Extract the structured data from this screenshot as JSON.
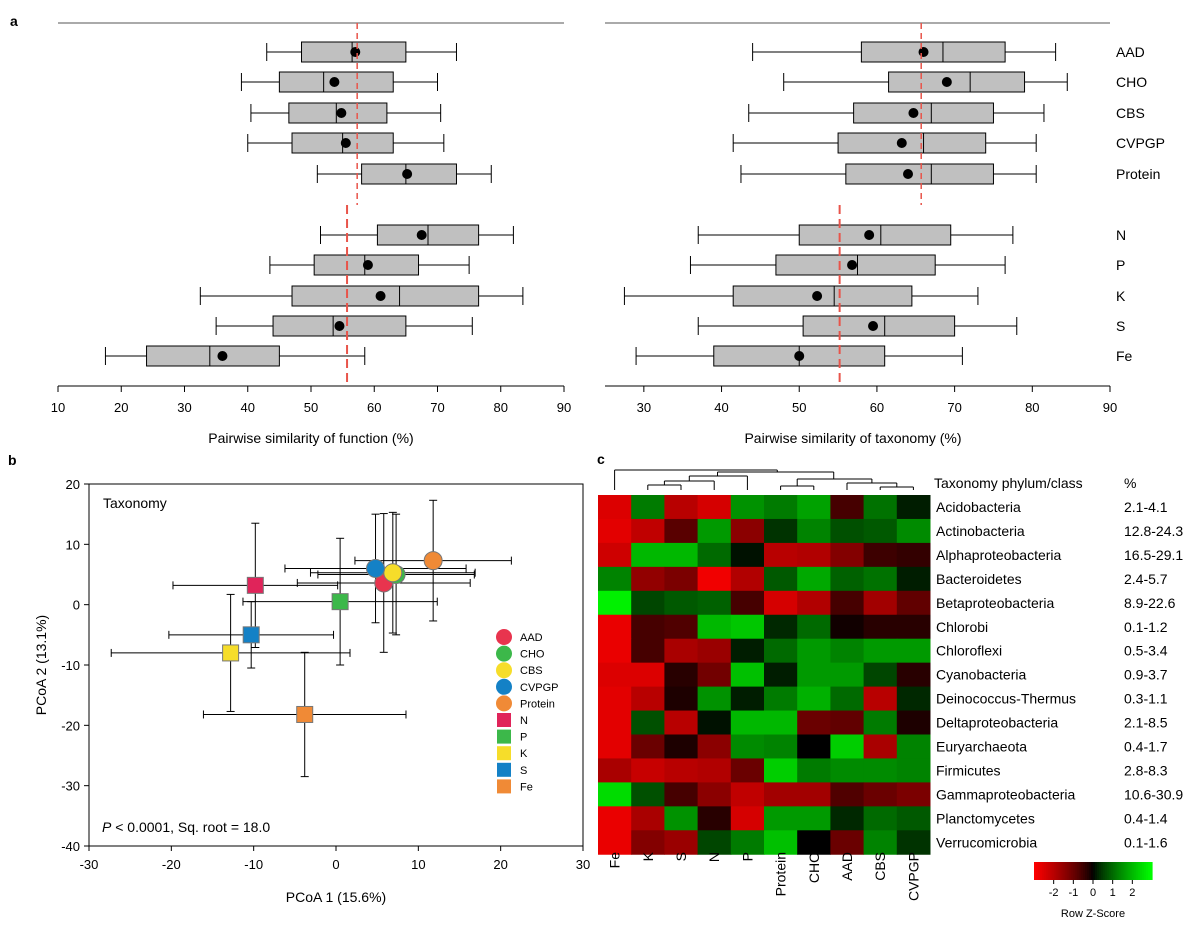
{
  "panel_labels": {
    "a": "a",
    "b": "b",
    "c": "c"
  },
  "colors": {
    "box_fill": "#c0c0c0",
    "ref_line": "#e8544a",
    "AAD": "#e8344e",
    "CHO": "#3cb84a",
    "CBS": "#f6dd2a",
    "CVPGP": "#1481c6",
    "Protein": "#f08a36",
    "N": "#e0245a",
    "P": "#3cb84a",
    "K": "#f6dd2a",
    "S": "#1481c6",
    "Fe": "#f08a36"
  },
  "chart_data": [
    {
      "id": "a-function",
      "type": "boxplot",
      "xlabel": "Pairwise similarity of function (%)",
      "xlim": [
        10,
        90
      ],
      "xticks": [
        10,
        20,
        30,
        40,
        50,
        60,
        70,
        80,
        90
      ],
      "ref_lines": [
        57.3,
        55.7
      ],
      "series": [
        {
          "name": "AAD",
          "whisker_low": 43,
          "q1": 48.5,
          "median": 56.5,
          "q3": 65,
          "whisker_high": 73,
          "mean": 57
        },
        {
          "name": "CHO",
          "whisker_low": 39,
          "q1": 45,
          "median": 52,
          "q3": 63,
          "whisker_high": 70,
          "mean": 53.7
        },
        {
          "name": "CBS",
          "whisker_low": 40.5,
          "q1": 46.5,
          "median": 54,
          "q3": 62,
          "whisker_high": 70.5,
          "mean": 54.8
        },
        {
          "name": "CVPGP",
          "whisker_low": 40,
          "q1": 47,
          "median": 55,
          "q3": 63,
          "whisker_high": 71,
          "mean": 55.5
        },
        {
          "name": "Protein",
          "whisker_low": 51,
          "q1": 58,
          "median": 65,
          "q3": 73,
          "whisker_high": 78.5,
          "mean": 65.2
        },
        {
          "name": "N",
          "whisker_low": 51.5,
          "q1": 60.5,
          "median": 68.5,
          "q3": 76.5,
          "whisker_high": 82,
          "mean": 67.5
        },
        {
          "name": "P",
          "whisker_low": 43.5,
          "q1": 50.5,
          "median": 58.5,
          "q3": 67,
          "whisker_high": 75,
          "mean": 59
        },
        {
          "name": "K",
          "whisker_low": 32.5,
          "q1": 47,
          "median": 64,
          "q3": 76.5,
          "whisker_high": 83.5,
          "mean": 61
        },
        {
          "name": "S",
          "whisker_low": 35,
          "q1": 44,
          "median": 53.5,
          "q3": 65,
          "whisker_high": 75.5,
          "mean": 54.5
        },
        {
          "name": "Fe",
          "whisker_low": 17.5,
          "q1": 24,
          "median": 34,
          "q3": 45,
          "whisker_high": 58.5,
          "mean": 36
        }
      ]
    },
    {
      "id": "a-taxonomy",
      "type": "boxplot",
      "xlabel": "Pairwise similarity of taxonomy (%)",
      "xlim": [
        25,
        90
      ],
      "xticks": [
        30,
        40,
        50,
        60,
        70,
        80,
        90
      ],
      "ref_lines": [
        65.7,
        55.2
      ],
      "series": [
        {
          "name": "AAD",
          "whisker_low": 44,
          "q1": 58,
          "median": 68.5,
          "q3": 76.5,
          "whisker_high": 83,
          "mean": 66
        },
        {
          "name": "CHO",
          "whisker_low": 48,
          "q1": 61.5,
          "median": 72,
          "q3": 79,
          "whisker_high": 84.5,
          "mean": 69
        },
        {
          "name": "CBS",
          "whisker_low": 43.5,
          "q1": 57,
          "median": 67,
          "q3": 75,
          "whisker_high": 81.5,
          "mean": 64.7
        },
        {
          "name": "CVPGP",
          "whisker_low": 41.5,
          "q1": 55,
          "median": 66,
          "q3": 74,
          "whisker_high": 80.5,
          "mean": 63.2
        },
        {
          "name": "Protein",
          "whisker_low": 42.5,
          "q1": 56,
          "median": 67,
          "q3": 75,
          "whisker_high": 80.5,
          "mean": 64
        },
        {
          "name": "N",
          "whisker_low": 37,
          "q1": 50,
          "median": 60.5,
          "q3": 69.5,
          "whisker_high": 77.5,
          "mean": 59
        },
        {
          "name": "P",
          "whisker_low": 36,
          "q1": 47,
          "median": 57.5,
          "q3": 67.5,
          "whisker_high": 76.5,
          "mean": 56.8
        },
        {
          "name": "K",
          "whisker_low": 27.5,
          "q1": 41.5,
          "median": 54.5,
          "q3": 64.5,
          "whisker_high": 73,
          "mean": 52.3
        },
        {
          "name": "S",
          "whisker_low": 37,
          "q1": 50.5,
          "median": 61,
          "q3": 70,
          "whisker_high": 78,
          "mean": 59.5
        },
        {
          "name": "Fe",
          "whisker_low": 29,
          "q1": 39,
          "median": 50,
          "q3": 61,
          "whisker_high": 71,
          "mean": 50
        }
      ]
    },
    {
      "id": "b-pcoa",
      "type": "scatter",
      "title": "Taxonomy",
      "xlabel": "PCoA 1 (15.6%)",
      "ylabel": "PCoA 2 (13.1%)",
      "xlim": [
        -30,
        30
      ],
      "ylim": [
        -40,
        20
      ],
      "xticks": [
        -30,
        -20,
        -10,
        0,
        10,
        20,
        30
      ],
      "yticks": [
        -40,
        -30,
        -20,
        -10,
        0,
        10,
        20
      ],
      "stat_italic": "P",
      "stat_text": " < 0.0001, Sq. root = 18.0",
      "points": [
        {
          "name": "AAD",
          "shape": "circle",
          "x": 5.8,
          "y": 3.6,
          "xerr": 10.5,
          "yerr": 11.5
        },
        {
          "name": "CHO",
          "shape": "circle",
          "x": 7.3,
          "y": 5.0,
          "xerr": 9.5,
          "yerr": 10.0
        },
        {
          "name": "CBS",
          "shape": "circle",
          "x": 6.9,
          "y": 5.3,
          "xerr": 10.0,
          "yerr": 10.0
        },
        {
          "name": "CVPGP",
          "shape": "circle",
          "x": 4.8,
          "y": 6.0,
          "xerr": 11.0,
          "yerr": 9.0
        },
        {
          "name": "Protein",
          "shape": "circle",
          "x": 11.8,
          "y": 7.3,
          "xerr": 9.5,
          "yerr": 10.0
        },
        {
          "name": "N",
          "shape": "square",
          "x": -9.8,
          "y": 3.2,
          "xerr": 10.0,
          "yerr": 10.3
        },
        {
          "name": "P",
          "shape": "square",
          "x": 0.5,
          "y": 0.5,
          "xerr": 11.8,
          "yerr": 10.5
        },
        {
          "name": "K",
          "shape": "square",
          "x": -12.8,
          "y": -8.0,
          "xerr": 14.5,
          "yerr": 9.7
        },
        {
          "name": "S",
          "shape": "square",
          "x": -10.3,
          "y": -5.0,
          "xerr": 10.0,
          "yerr": 5.5
        },
        {
          "name": "Fe",
          "shape": "square",
          "x": -3.8,
          "y": -18.2,
          "xerr": 12.3,
          "yerr": 10.3
        }
      ]
    },
    {
      "id": "c-heatmap",
      "type": "heatmap",
      "columns": [
        "Fe",
        "K",
        "S",
        "N",
        "P",
        "Protein",
        "CHO",
        "AAD",
        "CBS",
        "CVPGP"
      ],
      "header_phylum": "Taxonomy phylum/class",
      "header_pct": "%",
      "colorbar_label": "Row Z-Score",
      "colorbar_ticks": [
        "-2",
        "-1",
        "0",
        "1",
        "2"
      ],
      "colorbar_tick_values": [
        -2,
        -1,
        0,
        1,
        2
      ],
      "colorbar_range": [
        -3,
        3
      ],
      "rows": [
        {
          "name": "Acidobacteria",
          "pct": "2.1-4.1",
          "z": [
            -2.5,
            1.2,
            -2.0,
            -2.4,
            1.5,
            1.2,
            1.7,
            -0.6,
            1.1,
            0.2
          ]
        },
        {
          "name": "Actinobacteria",
          "pct": "12.8-24.3",
          "z": [
            -2.6,
            -2.1,
            -0.8,
            1.6,
            -1.4,
            0.4,
            1.3,
            0.7,
            0.8,
            1.4
          ]
        },
        {
          "name": "Alphaproteobacteria",
          "pct": "16.5-29.1",
          "z": [
            -2.3,
            2.0,
            2.0,
            1.0,
            0.1,
            -2.0,
            -1.9,
            -1.3,
            -0.5,
            -0.4
          ]
        },
        {
          "name": "Bacteroidetes",
          "pct": "2.4-5.7",
          "z": [
            1.3,
            -1.5,
            -1.2,
            -2.8,
            -1.9,
            0.8,
            1.8,
            0.9,
            1.1,
            0.2
          ]
        },
        {
          "name": "Betaproteobacteria",
          "pct": "8.9-22.6",
          "z": [
            2.8,
            0.6,
            0.8,
            0.9,
            -0.6,
            -2.4,
            -1.9,
            -0.6,
            -1.7,
            -0.9
          ]
        },
        {
          "name": "Chlorobi",
          "pct": "0.1-1.2",
          "z": [
            -2.7,
            -0.6,
            -0.7,
            2.0,
            2.2,
            0.3,
            1.0,
            -0.1,
            -0.3,
            -0.3
          ]
        },
        {
          "name": "Chloroflexi",
          "pct": "0.5-3.4",
          "z": [
            -2.7,
            -0.6,
            -1.8,
            -1.6,
            0.2,
            1.0,
            1.6,
            1.3,
            1.6,
            1.6
          ]
        },
        {
          "name": "Cyanobacteria",
          "pct": "0.9-3.7",
          "z": [
            -2.5,
            -2.5,
            -0.3,
            -1.1,
            2.1,
            0.2,
            1.6,
            1.6,
            0.6,
            -0.3
          ]
        },
        {
          "name": "Deinococcus-Thermus",
          "pct": "0.3-1.1",
          "z": [
            -2.6,
            -2.0,
            -0.2,
            1.5,
            0.2,
            1.2,
            1.9,
            1.0,
            -2.0,
            0.3
          ]
        },
        {
          "name": "Deltaproteobacteria",
          "pct": "2.1-8.5",
          "z": [
            -2.6,
            0.7,
            -2.0,
            0.1,
            2.0,
            2.0,
            -1.0,
            -0.9,
            1.2,
            -0.2
          ]
        },
        {
          "name": "Euryarchaeota",
          "pct": "0.4-1.7",
          "z": [
            -2.6,
            -1.0,
            -0.2,
            -1.4,
            1.4,
            1.3,
            0.0,
            2.3,
            -1.8,
            1.3
          ]
        },
        {
          "name": "Firmicutes",
          "pct": "2.8-8.3",
          "z": [
            -1.8,
            -2.2,
            -2.0,
            -1.9,
            -1.0,
            2.3,
            1.2,
            1.4,
            1.4,
            1.3
          ]
        },
        {
          "name": "Gammaproteobacteria",
          "pct": "10.6-30.9",
          "z": [
            2.5,
            0.7,
            -0.6,
            -1.4,
            -2.1,
            -1.7,
            -1.7,
            -0.7,
            -1.0,
            -1.2
          ]
        },
        {
          "name": "Planctomycetes",
          "pct": "0.4-1.4",
          "z": [
            -2.7,
            -1.8,
            1.5,
            -0.3,
            -2.4,
            1.6,
            1.6,
            0.3,
            1.0,
            0.8
          ]
        },
        {
          "name": "Verrucomicrobia",
          "pct": "0.1-1.6",
          "z": [
            -2.7,
            -1.3,
            -1.6,
            0.6,
            1.2,
            2.1,
            0.0,
            -1.0,
            1.3,
            0.4
          ]
        }
      ]
    }
  ]
}
